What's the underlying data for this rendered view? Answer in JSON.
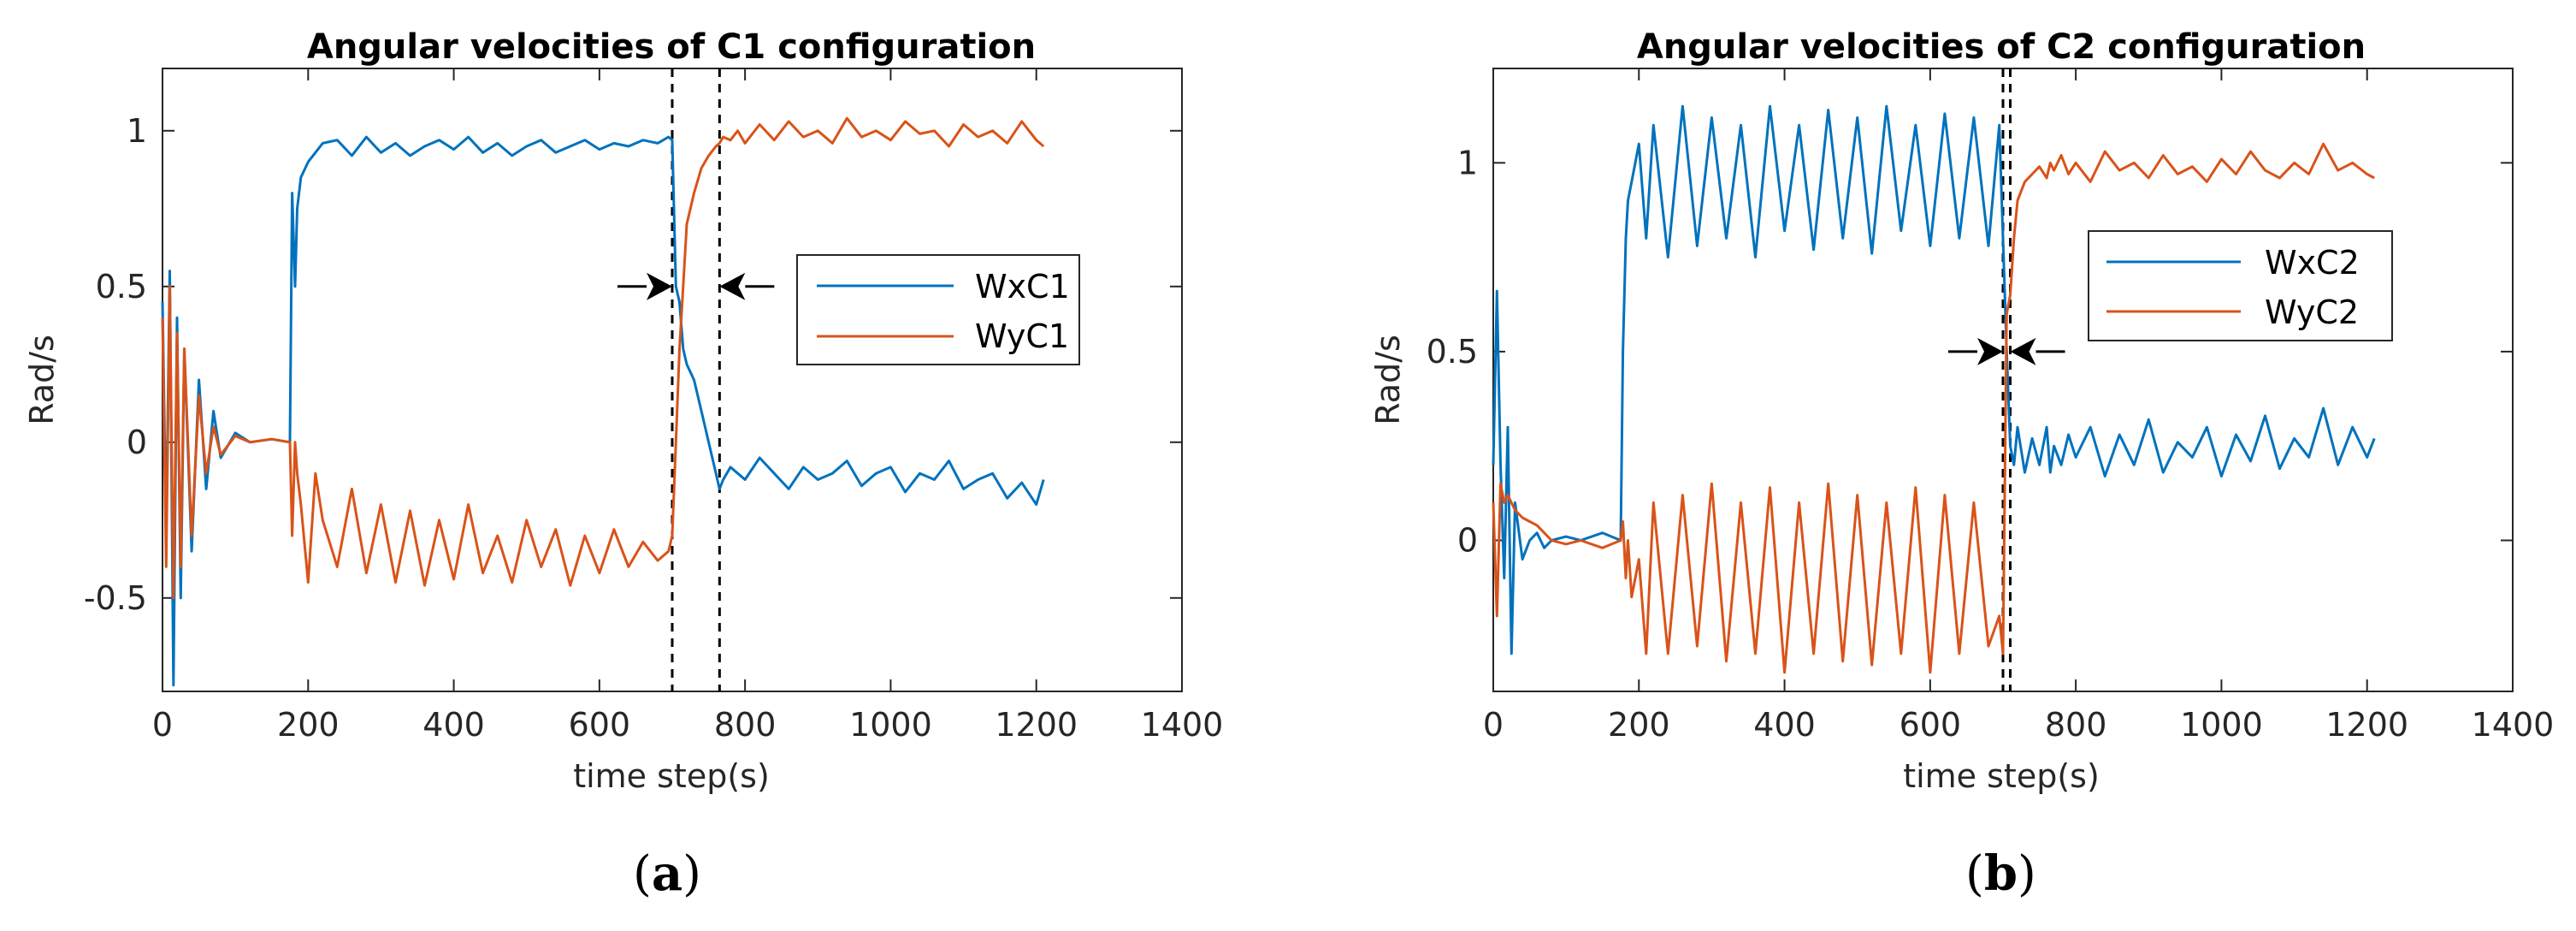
{
  "chart_data": [
    {
      "type": "line",
      "title": "Angular velocities of C1 configuration",
      "xlabel": "time step(s)",
      "ylabel": "Rad/s",
      "xlim": [
        0,
        1400
      ],
      "ylim": [
        -0.8,
        1.2
      ],
      "xticks": [
        0,
        200,
        400,
        600,
        800,
        1000,
        1200,
        1400
      ],
      "xtick_labels": [
        "0",
        "200",
        "400",
        "600",
        "800",
        "1000",
        "1200",
        "1400"
      ],
      "yticks": [
        -0.5,
        0,
        0.5,
        1
      ],
      "ytick_labels": [
        "-0.5",
        "0",
        "0.5",
        "1"
      ],
      "subfigure_label": "a",
      "legend": {
        "location": "right-center",
        "entries": [
          "WxC1",
          "WyC1"
        ]
      },
      "vlines": [
        700,
        765
      ],
      "arrows": "converging arrows marking the interval between 700 and 765",
      "series": [
        {
          "name": "WxC1",
          "color": "#0072BD",
          "x": [
            0,
            5,
            10,
            15,
            20,
            25,
            30,
            40,
            50,
            60,
            70,
            80,
            100,
            120,
            150,
            175,
            178,
            182,
            185,
            190,
            200,
            210,
            220,
            240,
            260,
            280,
            300,
            320,
            340,
            360,
            380,
            400,
            420,
            440,
            460,
            480,
            500,
            520,
            540,
            560,
            580,
            600,
            620,
            640,
            660,
            680,
            695,
            700,
            705,
            710,
            715,
            720,
            730,
            740,
            750,
            760,
            765,
            770,
            780,
            790,
            800,
            820,
            840,
            860,
            880,
            900,
            920,
            940,
            960,
            980,
            1000,
            1020,
            1040,
            1060,
            1080,
            1100,
            1120,
            1140,
            1160,
            1180,
            1200,
            1210
          ],
          "y": [
            0.45,
            -0.3,
            0.55,
            -0.78,
            0.4,
            -0.5,
            0.3,
            -0.35,
            0.2,
            -0.15,
            0.1,
            -0.05,
            0.03,
            0.0,
            0.01,
            0.0,
            0.8,
            0.5,
            0.75,
            0.85,
            0.9,
            0.93,
            0.96,
            0.97,
            0.92,
            0.98,
            0.93,
            0.96,
            0.92,
            0.95,
            0.97,
            0.94,
            0.98,
            0.93,
            0.96,
            0.92,
            0.95,
            0.97,
            0.93,
            0.95,
            0.97,
            0.94,
            0.96,
            0.95,
            0.97,
            0.96,
            0.98,
            0.97,
            0.5,
            0.45,
            0.3,
            0.25,
            0.2,
            0.1,
            0.0,
            -0.1,
            -0.15,
            -0.12,
            -0.08,
            -0.1,
            -0.12,
            -0.05,
            -0.1,
            -0.15,
            -0.08,
            -0.12,
            -0.1,
            -0.06,
            -0.14,
            -0.1,
            -0.08,
            -0.16,
            -0.1,
            -0.12,
            -0.06,
            -0.15,
            -0.12,
            -0.1,
            -0.18,
            -0.13,
            -0.2,
            -0.12
          ]
        },
        {
          "name": "WyC1",
          "color": "#D95319",
          "x": [
            0,
            5,
            10,
            15,
            20,
            25,
            30,
            40,
            50,
            60,
            70,
            80,
            100,
            120,
            150,
            175,
            178,
            182,
            185,
            190,
            200,
            210,
            220,
            240,
            260,
            280,
            300,
            320,
            340,
            360,
            380,
            400,
            420,
            440,
            460,
            480,
            500,
            520,
            540,
            560,
            580,
            600,
            620,
            640,
            660,
            680,
            695,
            700,
            705,
            710,
            715,
            720,
            730,
            740,
            750,
            760,
            765,
            770,
            780,
            790,
            800,
            820,
            840,
            860,
            880,
            900,
            920,
            940,
            960,
            980,
            1000,
            1020,
            1040,
            1060,
            1080,
            1100,
            1120,
            1140,
            1160,
            1180,
            1200,
            1210
          ],
          "y": [
            0.4,
            -0.4,
            0.5,
            -0.5,
            0.35,
            -0.4,
            0.3,
            -0.3,
            0.15,
            -0.1,
            0.05,
            -0.04,
            0.02,
            0.0,
            0.01,
            0.0,
            -0.3,
            0.0,
            -0.1,
            -0.2,
            -0.45,
            -0.1,
            -0.25,
            -0.4,
            -0.15,
            -0.42,
            -0.2,
            -0.45,
            -0.22,
            -0.46,
            -0.25,
            -0.44,
            -0.2,
            -0.42,
            -0.3,
            -0.45,
            -0.25,
            -0.4,
            -0.28,
            -0.46,
            -0.3,
            -0.42,
            -0.28,
            -0.4,
            -0.32,
            -0.38,
            -0.35,
            -0.3,
            0.0,
            0.3,
            0.5,
            0.7,
            0.8,
            0.88,
            0.92,
            0.95,
            0.96,
            0.98,
            0.97,
            1.0,
            0.96,
            1.02,
            0.97,
            1.03,
            0.98,
            1.0,
            0.96,
            1.04,
            0.98,
            1.0,
            0.97,
            1.03,
            0.99,
            1.0,
            0.95,
            1.02,
            0.98,
            1.0,
            0.96,
            1.03,
            0.97,
            0.95
          ]
        }
      ]
    },
    {
      "type": "line",
      "title": "Angular velocities of C2 configuration",
      "xlabel": "time step(s)",
      "ylabel": "Rad/s",
      "xlim": [
        0,
        1400
      ],
      "ylim": [
        -0.4,
        1.25
      ],
      "xticks": [
        0,
        200,
        400,
        600,
        800,
        1000,
        1200,
        1400
      ],
      "xtick_labels": [
        "0",
        "200",
        "400",
        "600",
        "800",
        "1000",
        "1200",
        "1400"
      ],
      "yticks": [
        0,
        0.5,
        1
      ],
      "ytick_labels": [
        "0",
        "0.5",
        "1"
      ],
      "subfigure_label": "b",
      "legend": {
        "location": "right-center",
        "entries": [
          "WxC2",
          "WyC2"
        ]
      },
      "vlines": [
        700,
        710
      ],
      "arrows": "converging arrows marking the interval between 700 and 710",
      "series": [
        {
          "name": "WxC2",
          "color": "#0072BD",
          "x": [
            0,
            5,
            10,
            15,
            20,
            25,
            30,
            40,
            50,
            60,
            70,
            80,
            100,
            120,
            150,
            175,
            178,
            182,
            185,
            190,
            200,
            210,
            220,
            240,
            260,
            280,
            300,
            320,
            340,
            360,
            380,
            400,
            420,
            440,
            460,
            480,
            500,
            520,
            540,
            560,
            580,
            600,
            620,
            640,
            660,
            680,
            695,
            700,
            705,
            710,
            715,
            720,
            730,
            740,
            750,
            760,
            765,
            770,
            780,
            790,
            800,
            820,
            840,
            860,
            880,
            900,
            920,
            940,
            960,
            980,
            1000,
            1020,
            1040,
            1060,
            1080,
            1100,
            1120,
            1140,
            1160,
            1180,
            1200,
            1210
          ],
          "y": [
            0.2,
            0.66,
            0.2,
            -0.1,
            0.3,
            -0.3,
            0.1,
            -0.05,
            0.0,
            0.02,
            -0.02,
            0.0,
            0.01,
            0.0,
            0.02,
            0.0,
            0.5,
            0.8,
            0.9,
            0.95,
            1.05,
            0.8,
            1.1,
            0.75,
            1.15,
            0.78,
            1.12,
            0.8,
            1.1,
            0.75,
            1.15,
            0.82,
            1.1,
            0.77,
            1.14,
            0.8,
            1.12,
            0.76,
            1.15,
            0.82,
            1.1,
            0.78,
            1.13,
            0.8,
            1.12,
            0.78,
            1.1,
            0.8,
            0.5,
            0.25,
            0.2,
            0.3,
            0.18,
            0.27,
            0.2,
            0.3,
            0.18,
            0.25,
            0.2,
            0.28,
            0.22,
            0.3,
            0.17,
            0.28,
            0.2,
            0.32,
            0.18,
            0.26,
            0.22,
            0.3,
            0.17,
            0.28,
            0.21,
            0.33,
            0.19,
            0.27,
            0.22,
            0.35,
            0.2,
            0.3,
            0.22,
            0.27
          ]
        },
        {
          "name": "WyC2",
          "color": "#D95319",
          "x": [
            0,
            5,
            10,
            15,
            20,
            25,
            30,
            40,
            50,
            60,
            70,
            80,
            100,
            120,
            150,
            175,
            178,
            182,
            185,
            190,
            200,
            210,
            220,
            240,
            260,
            280,
            300,
            320,
            340,
            360,
            380,
            400,
            420,
            440,
            460,
            480,
            500,
            520,
            540,
            560,
            580,
            600,
            620,
            640,
            660,
            680,
            695,
            700,
            705,
            710,
            715,
            720,
            730,
            740,
            750,
            760,
            765,
            770,
            780,
            790,
            800,
            820,
            840,
            860,
            880,
            900,
            920,
            940,
            960,
            980,
            1000,
            1020,
            1040,
            1060,
            1080,
            1100,
            1120,
            1140,
            1160,
            1180,
            1200,
            1210
          ],
          "y": [
            0.1,
            -0.2,
            0.15,
            0.1,
            0.12,
            0.1,
            0.08,
            0.06,
            0.05,
            0.04,
            0.02,
            0.0,
            -0.01,
            0.0,
            -0.02,
            0.0,
            0.05,
            -0.1,
            0.0,
            -0.15,
            -0.05,
            -0.3,
            0.1,
            -0.3,
            0.12,
            -0.28,
            0.15,
            -0.32,
            0.1,
            -0.3,
            0.14,
            -0.35,
            0.1,
            -0.3,
            0.15,
            -0.32,
            0.12,
            -0.33,
            0.1,
            -0.3,
            0.14,
            -0.35,
            0.12,
            -0.3,
            0.1,
            -0.28,
            -0.2,
            -0.3,
            0.6,
            0.65,
            0.8,
            0.9,
            0.95,
            0.97,
            0.99,
            0.96,
            1.0,
            0.98,
            1.02,
            0.97,
            1.0,
            0.95,
            1.03,
            0.98,
            1.0,
            0.96,
            1.02,
            0.97,
            0.99,
            0.95,
            1.01,
            0.97,
            1.03,
            0.98,
            0.96,
            1.0,
            0.97,
            1.05,
            0.98,
            1.0,
            0.97,
            0.96
          ]
        }
      ]
    }
  ]
}
